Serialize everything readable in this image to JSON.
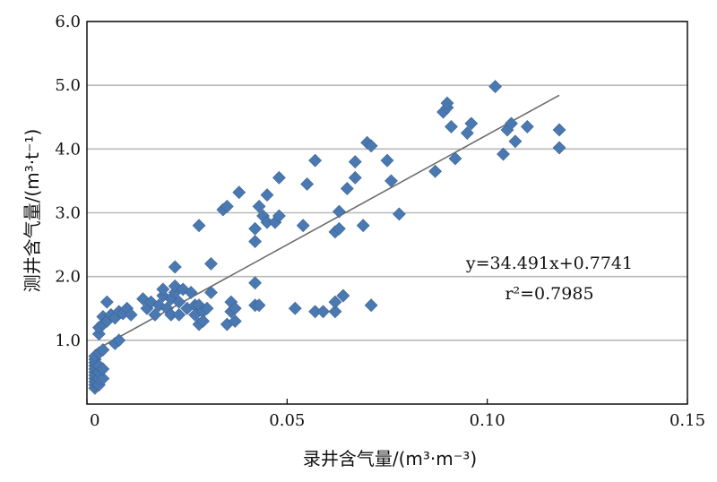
{
  "chart_data": {
    "type": "scatter",
    "xlabel": "录井含气量/(m³·m⁻³)",
    "ylabel": "测井含气量/(m³·t⁻¹)",
    "xlim": [
      0,
      0.15
    ],
    "ylim": [
      0,
      6.0
    ],
    "x_ticks": [
      "0",
      "0.05",
      "0.10",
      "0.15"
    ],
    "y_ticks": [
      "1.0",
      "2.0",
      "3.0",
      "4.0",
      "5.0",
      "6.0"
    ],
    "grid": "horizontal",
    "marker": "diamond",
    "colors": {
      "points": "#4a78b0",
      "trendline": "#6d6d6d",
      "grid": "#b9b9b9",
      "axis": "#000000"
    },
    "trendline": {
      "slope": 34.491,
      "intercept": 0.7741,
      "x_range": [
        0.002,
        0.118
      ]
    },
    "annotations": {
      "equation": "y=34.491x+0.7741",
      "r2": "r²=0.7985"
    },
    "points": [
      [
        0.002,
        0.25
      ],
      [
        0.002,
        0.3
      ],
      [
        0.002,
        0.35
      ],
      [
        0.002,
        0.4
      ],
      [
        0.002,
        0.45
      ],
      [
        0.002,
        0.5
      ],
      [
        0.002,
        0.55
      ],
      [
        0.002,
        0.6
      ],
      [
        0.002,
        0.65
      ],
      [
        0.002,
        0.7
      ],
      [
        0.002,
        0.75
      ],
      [
        0.003,
        0.3
      ],
      [
        0.003,
        0.4
      ],
      [
        0.003,
        0.5
      ],
      [
        0.003,
        0.6
      ],
      [
        0.003,
        0.8
      ],
      [
        0.004,
        0.4
      ],
      [
        0.004,
        0.55
      ],
      [
        0.004,
        0.85
      ],
      [
        0.003,
        1.1
      ],
      [
        0.003,
        1.2
      ],
      [
        0.004,
        1.37
      ],
      [
        0.004,
        1.25
      ],
      [
        0.005,
        1.3
      ],
      [
        0.005,
        1.6
      ],
      [
        0.006,
        1.4
      ],
      [
        0.007,
        0.95
      ],
      [
        0.007,
        1.35
      ],
      [
        0.008,
        1.0
      ],
      [
        0.008,
        1.45
      ],
      [
        0.009,
        1.42
      ],
      [
        0.01,
        1.5
      ],
      [
        0.011,
        1.4
      ],
      [
        0.014,
        1.65
      ],
      [
        0.015,
        1.5
      ],
      [
        0.016,
        1.6
      ],
      [
        0.017,
        1.4
      ],
      [
        0.018,
        1.55
      ],
      [
        0.019,
        1.7
      ],
      [
        0.019,
        1.8
      ],
      [
        0.02,
        1.5
      ],
      [
        0.021,
        1.65
      ],
      [
        0.021,
        1.4
      ],
      [
        0.022,
        1.75
      ],
      [
        0.022,
        2.15
      ],
      [
        0.022,
        1.85
      ],
      [
        0.023,
        1.6
      ],
      [
        0.023,
        1.4
      ],
      [
        0.024,
        1.8
      ],
      [
        0.025,
        1.5
      ],
      [
        0.026,
        1.75
      ],
      [
        0.027,
        1.55
      ],
      [
        0.027,
        1.4
      ],
      [
        0.028,
        1.55
      ],
      [
        0.028,
        1.25
      ],
      [
        0.029,
        1.45
      ],
      [
        0.029,
        1.3
      ],
      [
        0.03,
        1.5
      ],
      [
        0.028,
        2.8
      ],
      [
        0.031,
        2.2
      ],
      [
        0.031,
        1.75
      ],
      [
        0.034,
        3.05
      ],
      [
        0.035,
        3.1
      ],
      [
        0.035,
        1.25
      ],
      [
        0.036,
        1.6
      ],
      [
        0.036,
        1.45
      ],
      [
        0.037,
        1.3
      ],
      [
        0.037,
        1.5
      ],
      [
        0.038,
        3.32
      ],
      [
        0.042,
        1.55
      ],
      [
        0.042,
        2.75
      ],
      [
        0.042,
        2.55
      ],
      [
        0.042,
        1.9
      ],
      [
        0.043,
        3.1
      ],
      [
        0.043,
        1.55
      ],
      [
        0.044,
        2.95
      ],
      [
        0.045,
        3.28
      ],
      [
        0.045,
        2.85
      ],
      [
        0.047,
        2.85
      ],
      [
        0.048,
        2.95
      ],
      [
        0.048,
        3.55
      ],
      [
        0.052,
        1.5
      ],
      [
        0.054,
        2.8
      ],
      [
        0.055,
        3.45
      ],
      [
        0.057,
        3.82
      ],
      [
        0.057,
        1.45
      ],
      [
        0.059,
        1.45
      ],
      [
        0.062,
        2.7
      ],
      [
        0.063,
        3.02
      ],
      [
        0.063,
        2.75
      ],
      [
        0.062,
        1.45
      ],
      [
        0.062,
        1.6
      ],
      [
        0.064,
        1.7
      ],
      [
        0.065,
        3.38
      ],
      [
        0.067,
        3.55
      ],
      [
        0.067,
        3.8
      ],
      [
        0.069,
        2.8
      ],
      [
        0.07,
        4.1
      ],
      [
        0.071,
        4.05
      ],
      [
        0.071,
        1.55
      ],
      [
        0.075,
        3.82
      ],
      [
        0.076,
        3.5
      ],
      [
        0.078,
        2.98
      ],
      [
        0.087,
        3.65
      ],
      [
        0.089,
        4.58
      ],
      [
        0.09,
        4.65
      ],
      [
        0.09,
        4.72
      ],
      [
        0.091,
        4.35
      ],
      [
        0.092,
        3.85
      ],
      [
        0.095,
        4.25
      ],
      [
        0.096,
        4.4
      ],
      [
        0.102,
        4.98
      ],
      [
        0.104,
        3.92
      ],
      [
        0.105,
        4.3
      ],
      [
        0.106,
        4.4
      ],
      [
        0.107,
        4.12
      ],
      [
        0.11,
        4.35
      ],
      [
        0.118,
        4.3
      ],
      [
        0.118,
        4.02
      ]
    ]
  }
}
